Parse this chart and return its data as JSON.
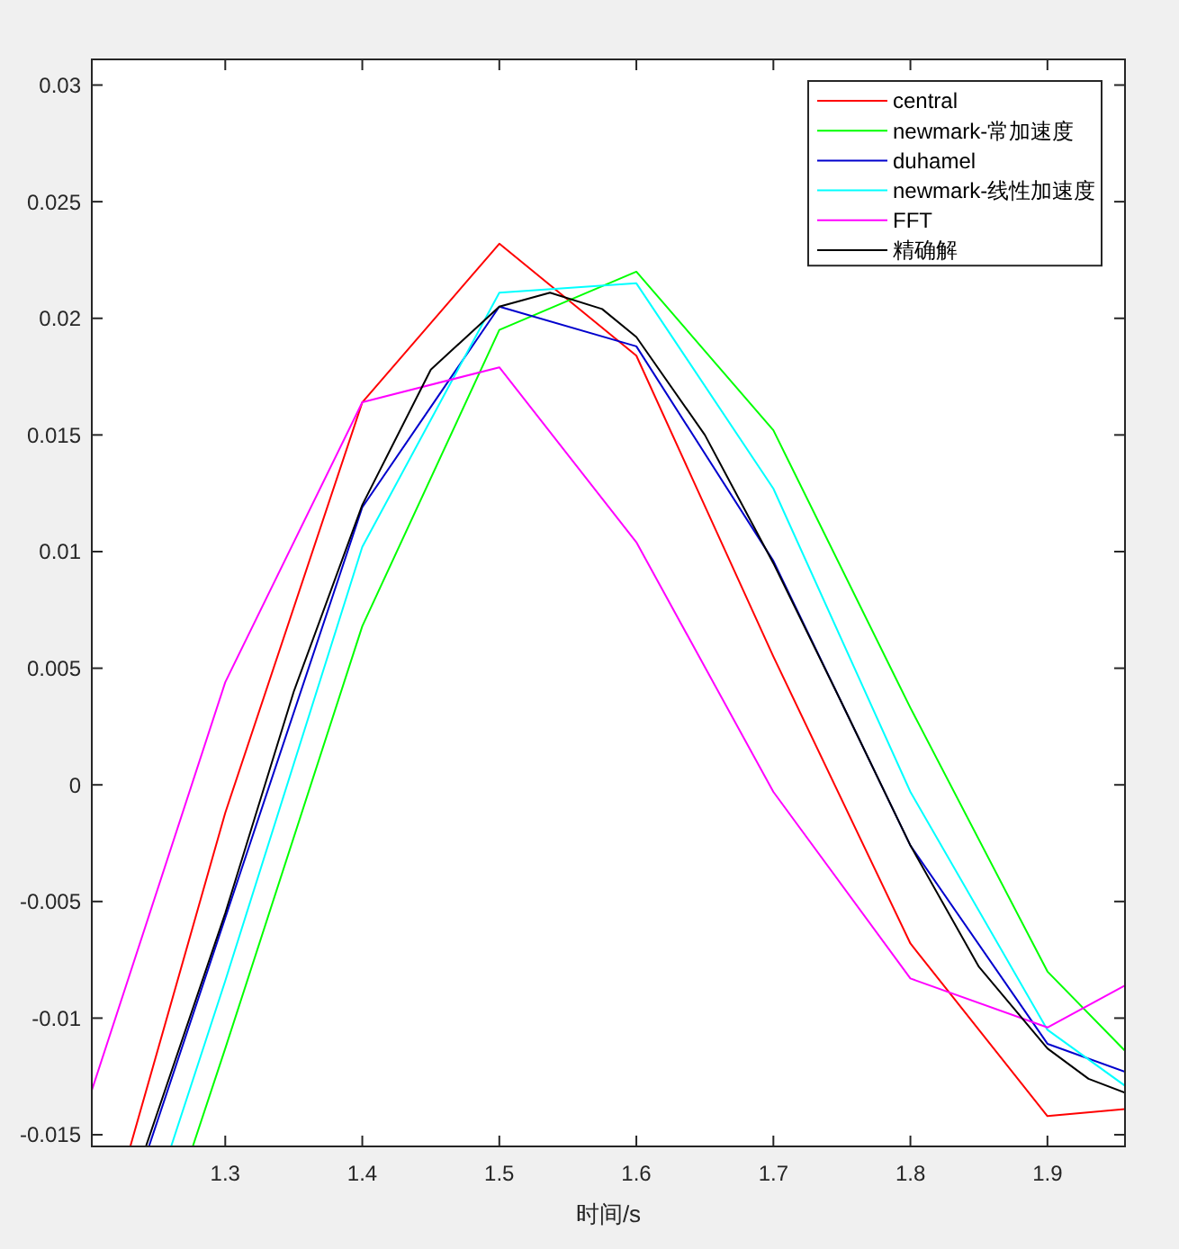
{
  "chart_data": {
    "type": "line",
    "xlabel": "时间/s",
    "xlim": [
      1.2026,
      1.9566
    ],
    "ylim": [
      -0.0155,
      0.0311
    ],
    "xticks": [
      1.3,
      1.4,
      1.5,
      1.6,
      1.7,
      1.8,
      1.9
    ],
    "yticks": [
      -0.015,
      -0.01,
      -0.005,
      0,
      0.005,
      0.01,
      0.015,
      0.02,
      0.025,
      0.03
    ],
    "grid": false,
    "legend": "top right",
    "marker": "none",
    "line_style": "solid",
    "series": [
      {
        "name": "central",
        "color": "#ff0000",
        "x": [
          1.2307,
          1.3,
          1.4,
          1.5,
          1.6,
          1.7,
          1.8,
          1.9,
          1.9566
        ],
        "values": [
          -0.0155,
          -0.0012,
          0.0164,
          0.0232,
          0.0184,
          0.0055,
          -0.0068,
          -0.0142,
          -0.0139
        ]
      },
      {
        "name": "newmark-常加速度",
        "color": "#00ff00",
        "x": [
          1.2763,
          1.3,
          1.4,
          1.5,
          1.6,
          1.7,
          1.8,
          1.9,
          1.9566
        ],
        "values": [
          -0.0155,
          -0.0113,
          0.0068,
          0.0195,
          0.022,
          0.0152,
          0.0033,
          -0.008,
          -0.0114
        ]
      },
      {
        "name": "duhamel",
        "color": "#0000cd",
        "x": [
          1.2443,
          1.3,
          1.4,
          1.5,
          1.6,
          1.7,
          1.8,
          1.9,
          1.9566
        ],
        "values": [
          -0.0155,
          -0.0057,
          0.0119,
          0.0205,
          0.0188,
          0.0096,
          -0.0026,
          -0.0111,
          -0.0123
        ]
      },
      {
        "name": "newmark-线性加速度",
        "color": "#00ffff",
        "x": [
          1.2605,
          1.3,
          1.4,
          1.5,
          1.6,
          1.7,
          1.8,
          1.9,
          1.9566
        ],
        "values": [
          -0.0155,
          -0.0084,
          0.0102,
          0.0211,
          0.0215,
          0.0127,
          -0.0003,
          -0.0105,
          -0.0129
        ]
      },
      {
        "name": "FFT",
        "color": "#ff00ff",
        "x": [
          1.2026,
          1.3,
          1.4,
          1.5,
          1.6,
          1.7,
          1.8,
          1.9,
          1.9566
        ],
        "values": [
          -0.0131,
          0.0044,
          0.0164,
          0.0179,
          0.0104,
          -0.0003,
          -0.0083,
          -0.0104,
          -0.0086
        ]
      },
      {
        "name": "精确解",
        "color": "#000000",
        "x": [
          1.2421,
          1.3,
          1.35,
          1.4,
          1.45,
          1.5,
          1.537,
          1.575,
          1.6,
          1.65,
          1.7,
          1.75,
          1.8,
          1.85,
          1.9,
          1.93,
          1.9566
        ],
        "values": [
          -0.0155,
          -0.0055,
          0.004,
          0.012,
          0.0178,
          0.0205,
          0.0211,
          0.0204,
          0.0192,
          0.015,
          0.0095,
          0.0035,
          -0.0026,
          -0.0078,
          -0.0113,
          -0.0126,
          -0.0132
        ]
      }
    ]
  }
}
